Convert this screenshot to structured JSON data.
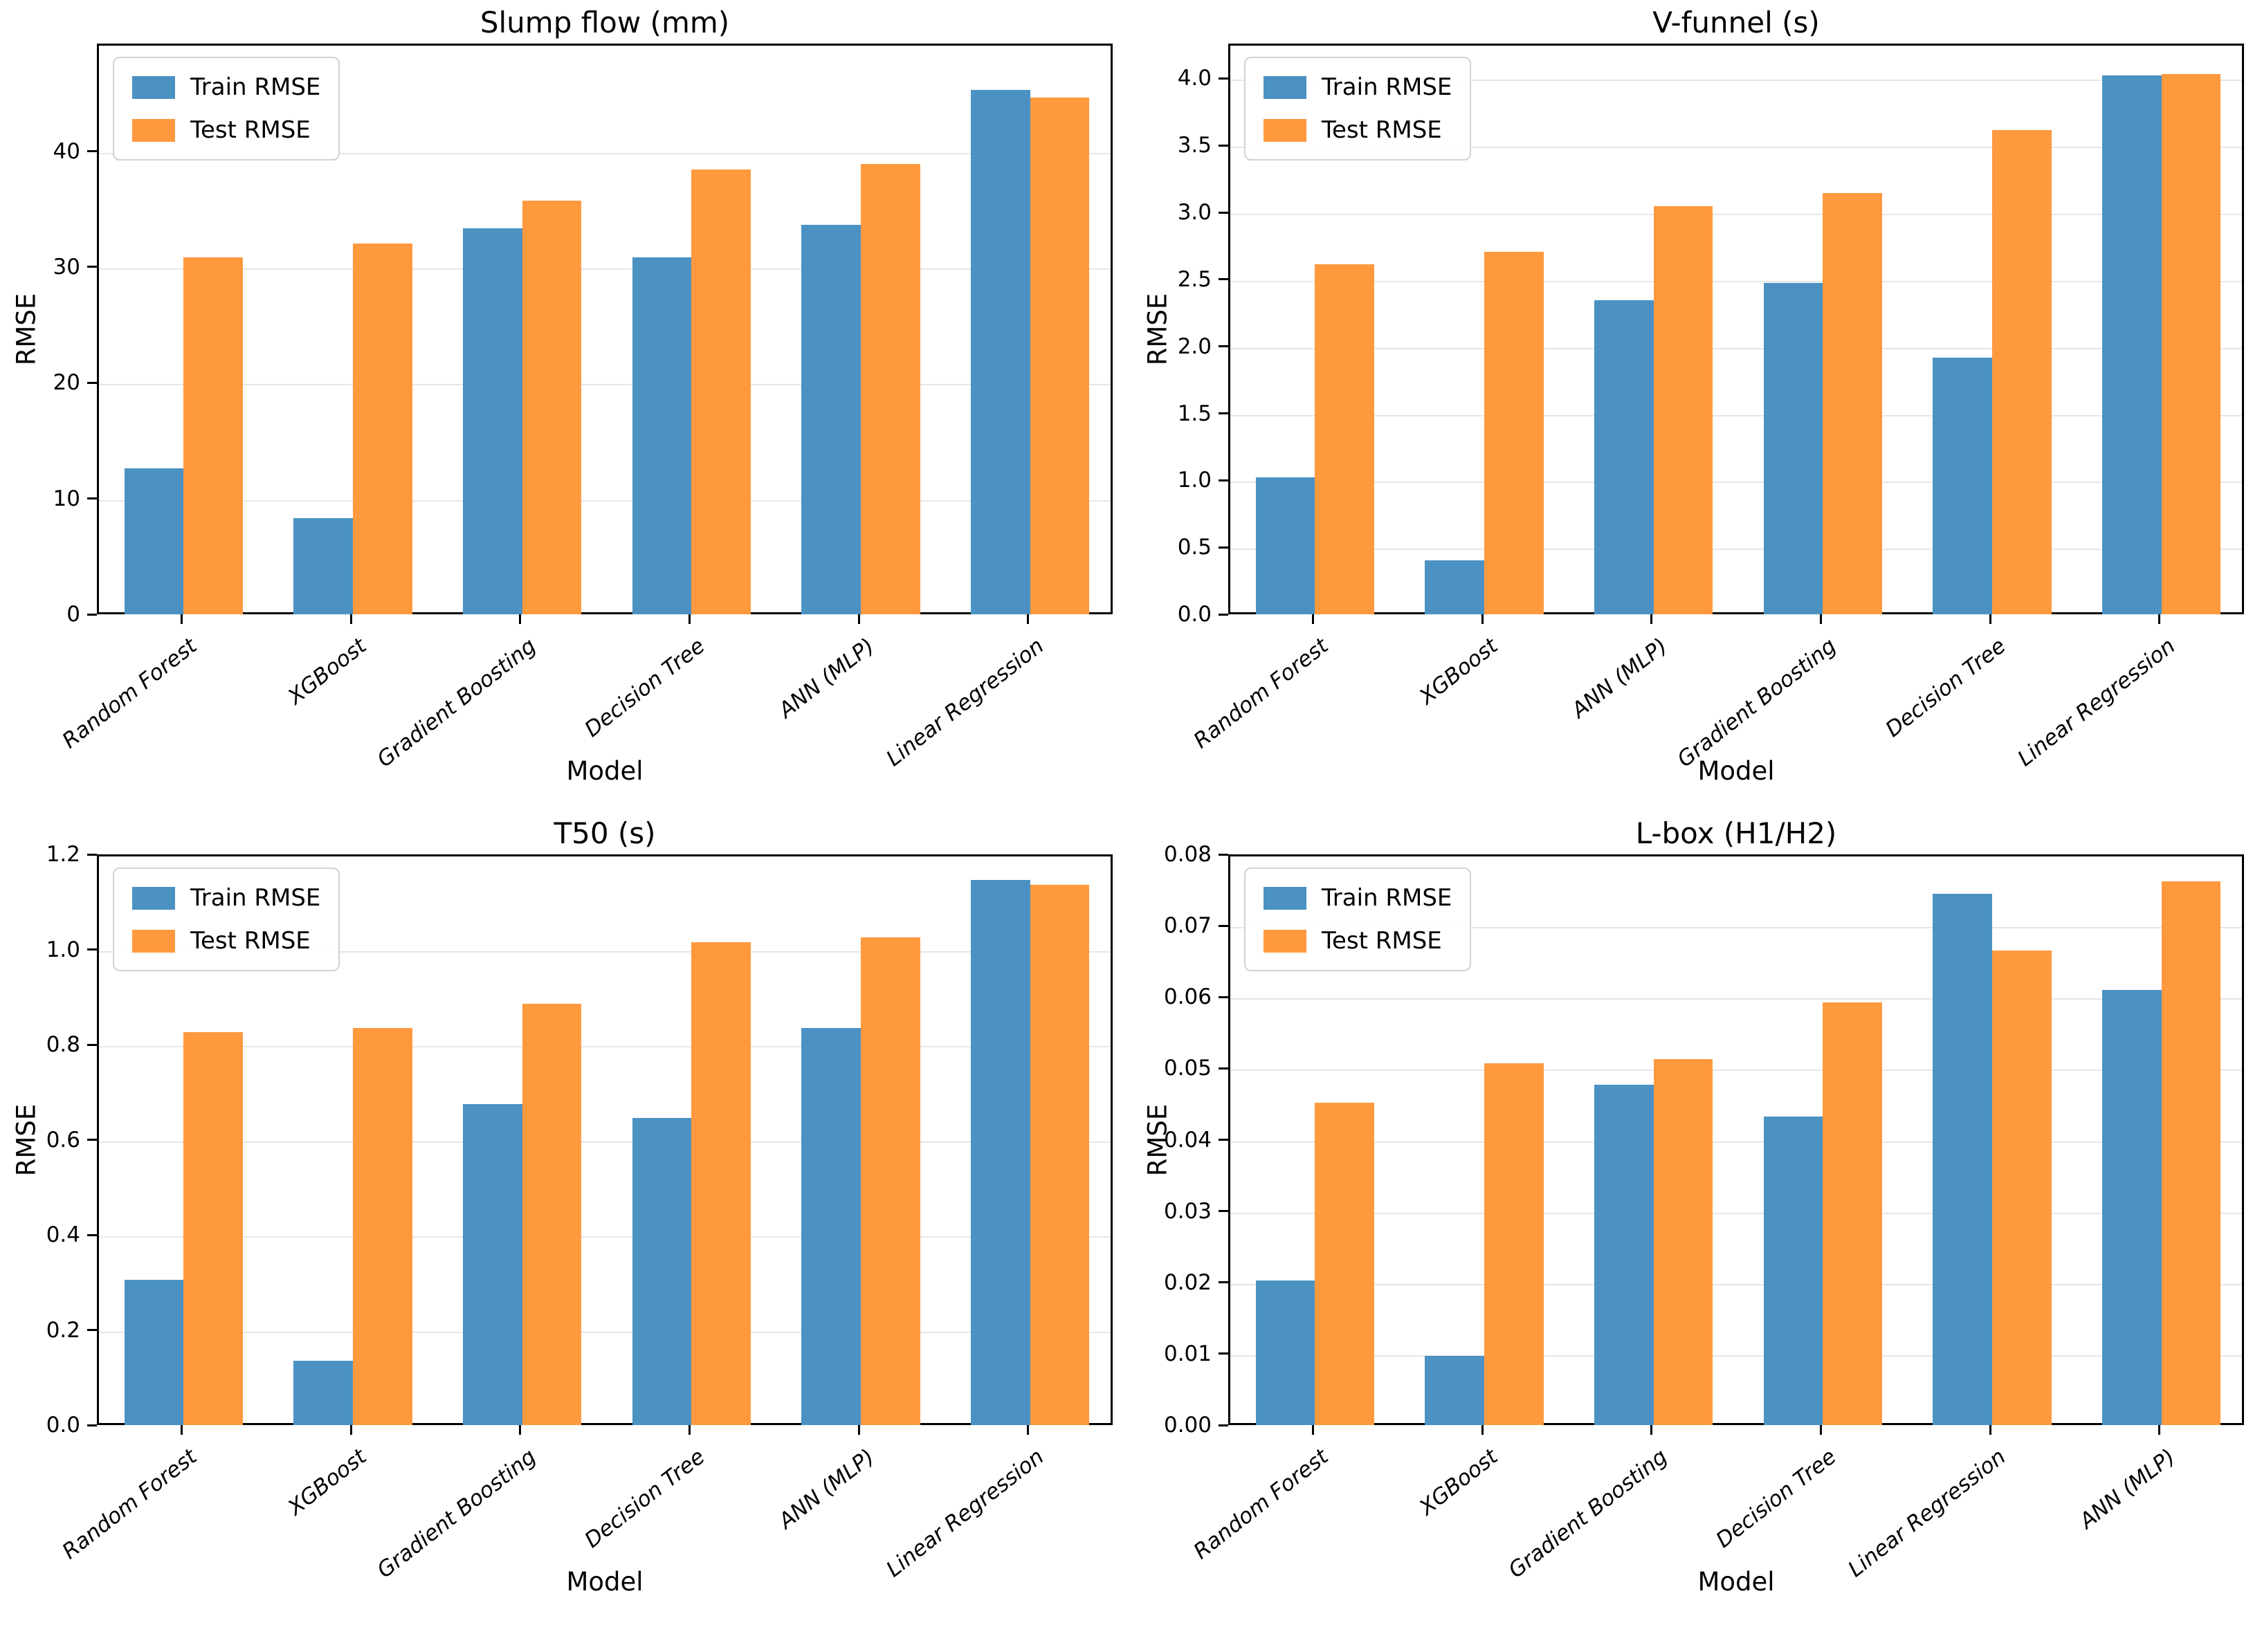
{
  "figure": {
    "ylabel": "RMSE",
    "xlabel": "Model",
    "legend": {
      "train_label": "Train RMSE",
      "test_label": "Test RMSE",
      "position": "upper left"
    }
  },
  "colors": {
    "train_bar": "#4b92c3",
    "test_bar": "#ff993e",
    "gridline": "#e6e6e6",
    "spine": "#000000",
    "text": "#000000"
  },
  "chart_data": [
    {
      "type": "bar",
      "title": "Slump flow (mm)",
      "xlabel": "Model",
      "ylabel": "RMSE",
      "grid": true,
      "legend_position": "upper left",
      "categories": [
        "Random Forest",
        "XGBoost",
        "Gradient Boosting",
        "Decision Tree",
        "ANN (MLP)",
        "Linear Regression"
      ],
      "series": [
        {
          "name": "Train RMSE",
          "values": [
            12.8,
            8.5,
            33.5,
            31.0,
            33.8,
            45.5
          ]
        },
        {
          "name": "Test RMSE",
          "values": [
            31.0,
            32.2,
            35.9,
            38.6,
            39.1,
            44.8
          ]
        }
      ],
      "ylim": [
        0,
        49.3
      ],
      "yticks": [
        0,
        10,
        20,
        30,
        40
      ],
      "ytick_decimals": 0
    },
    {
      "type": "bar",
      "title": "V-funnel (s)",
      "xlabel": "Model",
      "ylabel": "RMSE",
      "grid": true,
      "legend_position": "upper left",
      "categories": [
        "Random Forest",
        "XGBoost",
        "ANN (MLP)",
        "Gradient Boosting",
        "Decision Tree",
        "Linear Regression"
      ],
      "series": [
        {
          "name": "Train RMSE",
          "values": [
            1.04,
            0.42,
            2.36,
            2.49,
            1.93,
            4.04
          ]
        },
        {
          "name": "Test RMSE",
          "values": [
            2.63,
            2.72,
            3.06,
            3.16,
            3.63,
            4.05
          ]
        }
      ],
      "ylim": [
        0,
        4.26
      ],
      "yticks": [
        0.0,
        0.5,
        1.0,
        1.5,
        2.0,
        2.5,
        3.0,
        3.5,
        4.0
      ],
      "ytick_decimals": 1
    },
    {
      "type": "bar",
      "title": "T50 (s)",
      "xlabel": "Model",
      "ylabel": "RMSE",
      "grid": true,
      "legend_position": "upper left",
      "categories": [
        "Random Forest",
        "XGBoost",
        "Gradient Boosting",
        "Decision Tree",
        "ANN (MLP)",
        "Linear Regression"
      ],
      "series": [
        {
          "name": "Train RMSE",
          "values": [
            0.31,
            0.14,
            0.68,
            0.65,
            0.84,
            1.15
          ]
        },
        {
          "name": "Test RMSE",
          "values": [
            0.83,
            0.84,
            0.89,
            1.02,
            1.03,
            1.14
          ]
        }
      ],
      "ylim": [
        0,
        1.2
      ],
      "yticks": [
        0.0,
        0.2,
        0.4,
        0.6,
        0.8,
        1.0,
        1.2
      ],
      "ytick_decimals": 1
    },
    {
      "type": "bar",
      "title": "L-box (H1/H2)",
      "xlabel": "Model",
      "ylabel": "RMSE",
      "grid": true,
      "legend_position": "upper left",
      "categories": [
        "Random Forest",
        "XGBoost",
        "Gradient Boosting",
        "Decision Tree",
        "Linear Regression",
        "ANN (MLP)"
      ],
      "series": [
        {
          "name": "Train RMSE",
          "values": [
            0.0206,
            0.01,
            0.048,
            0.0435,
            0.0748,
            0.0613
          ]
        },
        {
          "name": "Test RMSE",
          "values": [
            0.0455,
            0.051,
            0.0516,
            0.0595,
            0.0668,
            0.0765
          ]
        }
      ],
      "ylim": [
        0,
        0.08
      ],
      "yticks": [
        0.0,
        0.01,
        0.02,
        0.03,
        0.04,
        0.05,
        0.06,
        0.07,
        0.08
      ],
      "ytick_decimals": 2
    }
  ]
}
